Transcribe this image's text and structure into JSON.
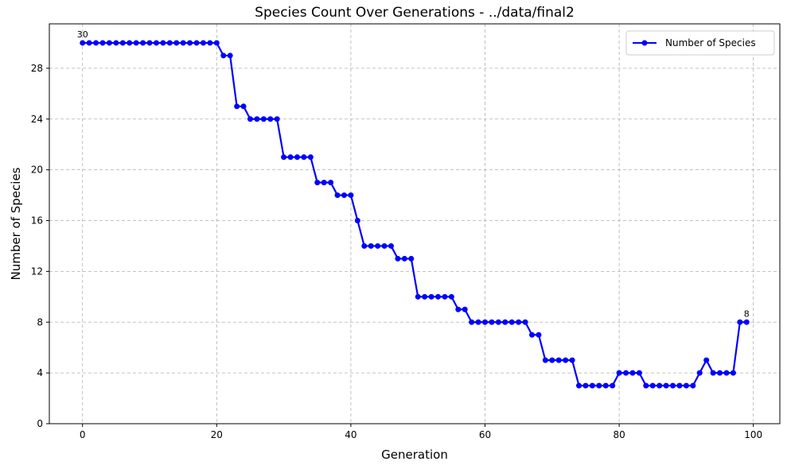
{
  "chart_data": {
    "type": "line",
    "title": "Species Count Over Generations - ../data/final2",
    "xlabel": "Generation",
    "ylabel": "Number of Species",
    "xlim": [
      -4.95,
      103.95
    ],
    "ylim": [
      0,
      31.5
    ],
    "xticks": [
      0,
      20,
      40,
      60,
      80,
      100
    ],
    "yticks": [
      0,
      4,
      8,
      12,
      16,
      20,
      24,
      28
    ],
    "grid": true,
    "legend_position": "top-right",
    "series": [
      {
        "name": "Number of Species",
        "color": "#0000ff",
        "x": [
          0,
          1,
          2,
          3,
          4,
          5,
          6,
          7,
          8,
          9,
          10,
          11,
          12,
          13,
          14,
          15,
          16,
          17,
          18,
          19,
          20,
          21,
          22,
          23,
          24,
          25,
          26,
          27,
          28,
          29,
          30,
          31,
          32,
          33,
          34,
          35,
          36,
          37,
          38,
          39,
          40,
          41,
          42,
          43,
          44,
          45,
          46,
          47,
          48,
          49,
          50,
          51,
          52,
          53,
          54,
          55,
          56,
          57,
          58,
          59,
          60,
          61,
          62,
          63,
          64,
          65,
          66,
          67,
          68,
          69,
          70,
          71,
          72,
          73,
          74,
          75,
          76,
          77,
          78,
          79,
          80,
          81,
          82,
          83,
          84,
          85,
          86,
          87,
          88,
          89,
          90,
          91,
          92,
          93,
          94,
          95,
          96,
          97,
          98,
          99
        ],
        "values": [
          30,
          30,
          30,
          30,
          30,
          30,
          30,
          30,
          30,
          30,
          30,
          30,
          30,
          30,
          30,
          30,
          30,
          30,
          30,
          30,
          30,
          29,
          29,
          25,
          25,
          24,
          24,
          24,
          24,
          24,
          21,
          21,
          21,
          21,
          21,
          19,
          19,
          19,
          18,
          18,
          18,
          16,
          14,
          14,
          14,
          14,
          14,
          13,
          13,
          13,
          10,
          10,
          10,
          10,
          10,
          10,
          9,
          9,
          8,
          8,
          8,
          8,
          8,
          8,
          8,
          8,
          8,
          7,
          7,
          5,
          5,
          5,
          5,
          5,
          3,
          3,
          3,
          3,
          3,
          3,
          4,
          4,
          4,
          4,
          3,
          3,
          3,
          3,
          3,
          3,
          3,
          3,
          4,
          5,
          4,
          4,
          4,
          4,
          8,
          8
        ]
      }
    ],
    "annotations": [
      {
        "x": 0,
        "y": 30,
        "text": "30"
      },
      {
        "x": 99,
        "y": 8,
        "text": "8"
      }
    ]
  }
}
